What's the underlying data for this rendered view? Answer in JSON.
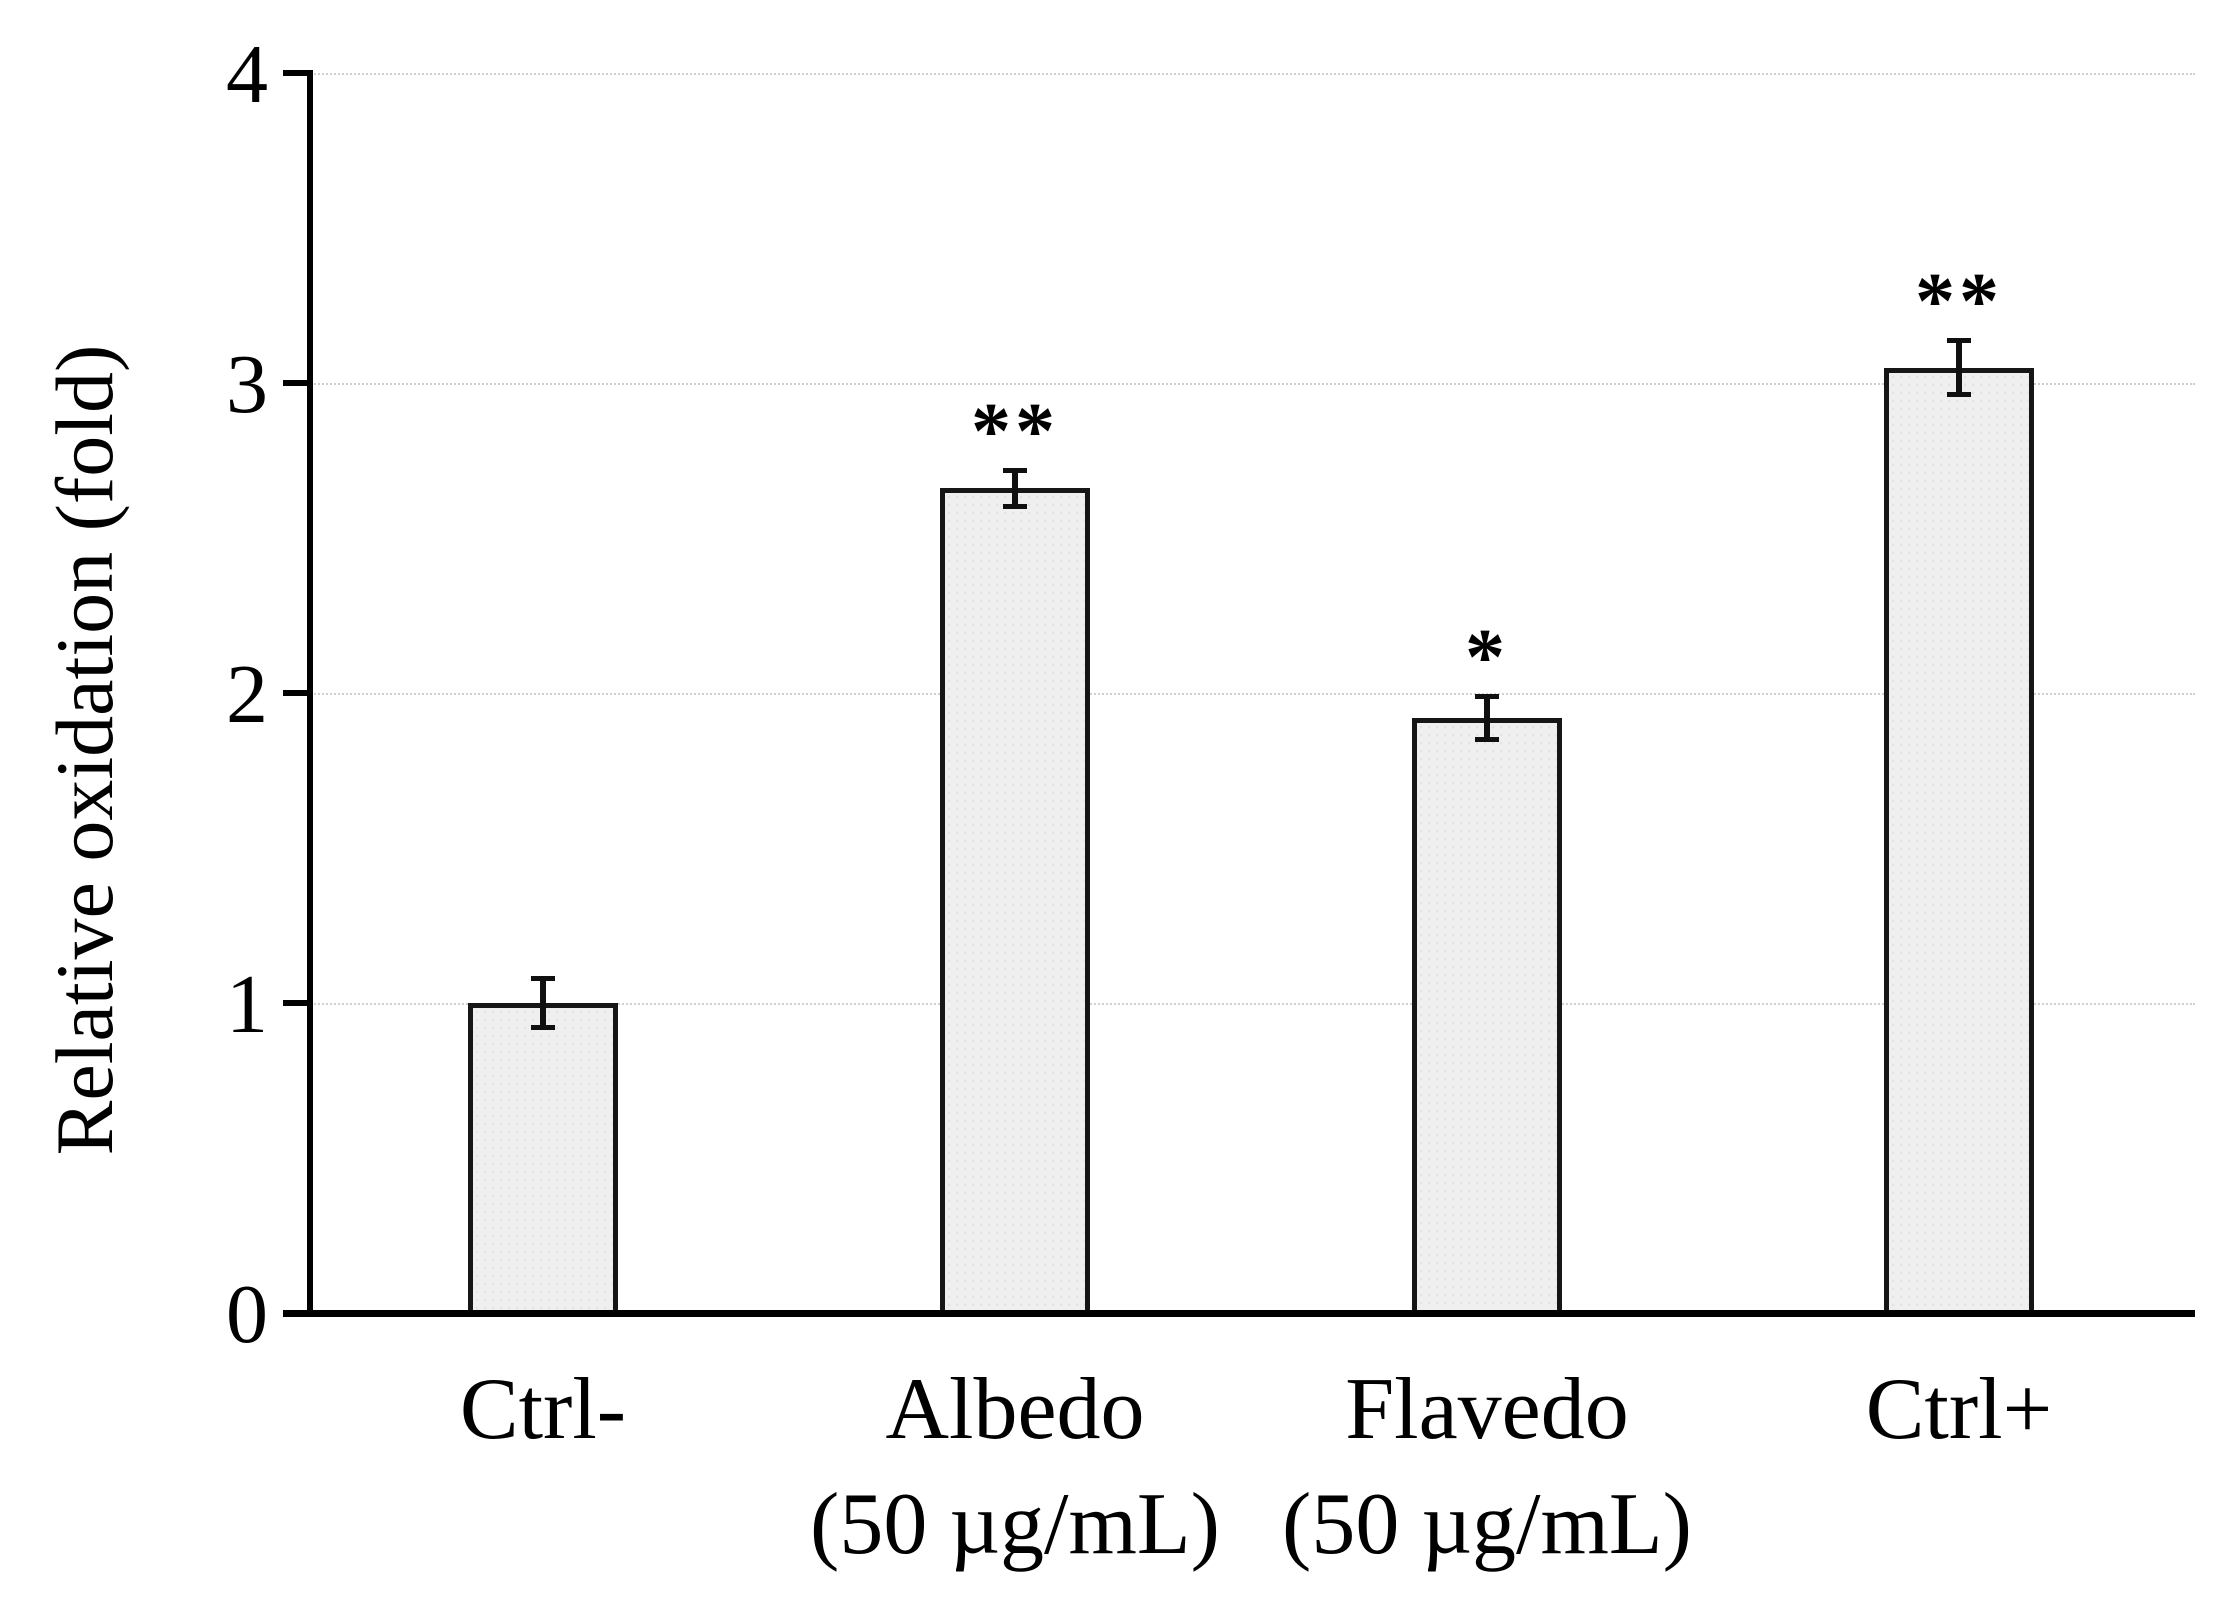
{
  "figure": {
    "background": "#ffffff"
  },
  "chart_data": {
    "type": "bar",
    "title": "",
    "ylabel": "Relative oxidation (fold)",
    "xlabel": "",
    "ylim": [
      0,
      4
    ],
    "yticks": [
      0,
      1,
      2,
      3,
      4
    ],
    "grid": "horizontal-light-dotted",
    "legend": "none",
    "categories": [
      "Ctrl-",
      "Albedo (50 µg/mL)",
      "Flavedo (50 µg/mL)",
      "Ctrl+"
    ],
    "category_lines": [
      [
        "Ctrl-"
      ],
      [
        "Albedo",
        "(50 µg/mL)"
      ],
      [
        "Flavedo",
        "(50 µg/mL)"
      ],
      [
        "Ctrl+"
      ]
    ],
    "values": [
      1.0,
      2.66,
      1.92,
      3.05
    ],
    "errors": [
      0.08,
      0.06,
      0.07,
      0.09
    ],
    "significance": [
      "",
      "**",
      "*",
      "**"
    ],
    "colors": {
      "bar_fill": "#efefef",
      "bar_border": "#161616",
      "gridline": "#cfcfcf",
      "axis": "#000000",
      "text": "#000000"
    }
  }
}
